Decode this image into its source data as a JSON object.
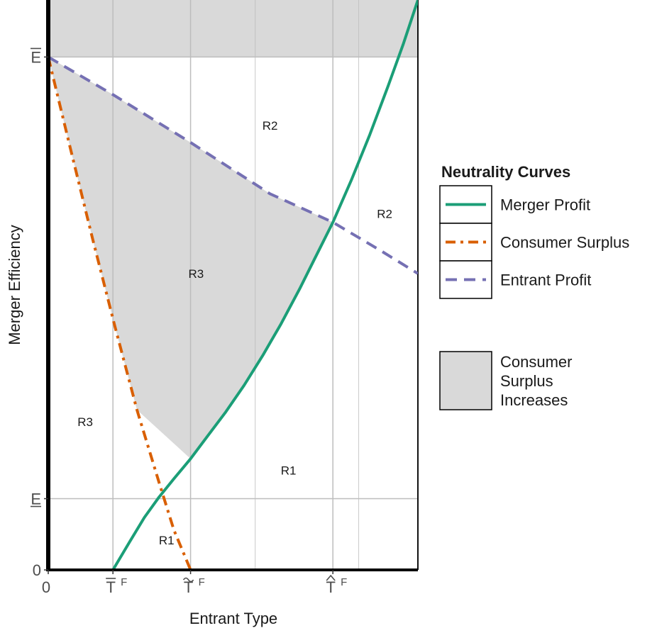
{
  "chart_data": {
    "type": "line",
    "xlabel": "Entrant Type",
    "ylabel": "Merger Efficiency",
    "xlim": [
      0,
      1
    ],
    "ylim": [
      0,
      1
    ],
    "grid": true,
    "x_ticks": [
      {
        "value": 0,
        "label": "0",
        "sup": ""
      },
      {
        "value": 0.175,
        "label": "T",
        "accent": "bar",
        "sup": "F"
      },
      {
        "value": 0.385,
        "label": "T",
        "accent": "tilde",
        "sup": "F"
      },
      {
        "value": 0.77,
        "label": "T",
        "accent": "hat",
        "sup": "F"
      }
    ],
    "y_ticks": [
      {
        "value": 0,
        "label": "0",
        "accent": ""
      },
      {
        "value": 0.125,
        "label": "E",
        "accent": "underbar"
      },
      {
        "value": 0.9,
        "label": "E",
        "accent": "overbar"
      }
    ],
    "series": [
      {
        "name": "Merger Profit",
        "color": "#1b9e77",
        "dash": "solid",
        "x": [
          0,
          0.175,
          0.22,
          0.26,
          0.3,
          0.34,
          0.385,
          0.43,
          0.48,
          0.53,
          0.58,
          0.63,
          0.68,
          0.72,
          0.77,
          0.82,
          0.87,
          0.92,
          0.96,
          1.0
        ],
        "y": [
          0,
          0,
          0.049,
          0.092,
          0.128,
          0.16,
          0.195,
          0.234,
          0.277,
          0.324,
          0.376,
          0.432,
          0.493,
          0.545,
          0.61,
          0.684,
          0.764,
          0.85,
          0.922,
          1.0
        ]
      },
      {
        "name": "Consumer Surplus",
        "color": "#d95f02",
        "dash": "dotdash",
        "x": [
          0,
          0.06,
          0.12,
          0.18,
          0.24,
          0.3,
          0.34,
          0.385,
          0.385,
          1.0
        ],
        "y": [
          0.9,
          0.739,
          0.581,
          0.428,
          0.281,
          0.153,
          0.07,
          0,
          0,
          0
        ]
      },
      {
        "name": "Entrant Profit",
        "color": "#7570b3",
        "dash": "dashed",
        "x": [
          0,
          0.175,
          0.385,
          0.6,
          0.77,
          0.9,
          1.0
        ],
        "y": [
          0.9,
          0.834,
          0.75,
          0.66,
          0.61,
          0.56,
          0.52
        ]
      }
    ],
    "shaded_regions": [
      {
        "name": "Consumer Surplus Increases",
        "color": "#d9d9d9"
      }
    ],
    "annotations": [
      {
        "text": "R2",
        "x": 0.6,
        "y": 0.78
      },
      {
        "text": "R2",
        "x": 0.91,
        "y": 0.625
      },
      {
        "text": "R3",
        "x": 0.4,
        "y": 0.52
      },
      {
        "text": "R3",
        "x": 0.1,
        "y": 0.26
      },
      {
        "text": "R1",
        "x": 0.65,
        "y": 0.175
      },
      {
        "text": "R1",
        "x": 0.32,
        "y": 0.052
      }
    ],
    "legend": {
      "title": "Neutrality Curves",
      "position": "right",
      "entries": [
        "Merger Profit",
        "Consumer Surplus",
        "Entrant Profit"
      ],
      "fill_entry": [
        "Consumer",
        "Surplus",
        "Increases"
      ]
    }
  }
}
